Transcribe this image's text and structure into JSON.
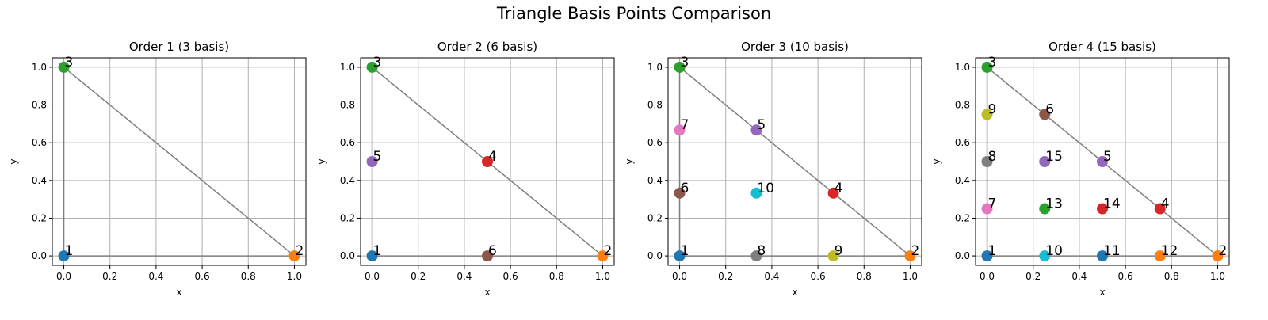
{
  "figure": {
    "title": "Triangle Basis Points Comparison"
  },
  "colors": [
    "#1f77b4",
    "#ff7f0e",
    "#2ca02c",
    "#d62728",
    "#9467bd",
    "#8c564b",
    "#e377c2",
    "#7f7f7f",
    "#bcbd22",
    "#17becf"
  ],
  "chart_data": [
    {
      "type": "scatter",
      "title": "Order 1 (3 basis)",
      "xlabel": "x",
      "ylabel": "y",
      "xlim": [
        -0.05,
        1.05
      ],
      "ylim": [
        -0.05,
        1.05
      ],
      "xticks": [
        0.0,
        0.2,
        0.4,
        0.6,
        0.8,
        1.0
      ],
      "yticks": [
        0.0,
        0.2,
        0.4,
        0.6,
        0.8,
        1.0
      ],
      "tick_labels": [
        "0.0",
        "0.2",
        "0.4",
        "0.6",
        "0.8",
        "1.0"
      ],
      "grid": true,
      "triangle": [
        [
          0,
          0
        ],
        [
          1,
          0
        ],
        [
          0,
          1
        ]
      ],
      "points": [
        {
          "label": "1",
          "x": 0,
          "y": 0
        },
        {
          "label": "2",
          "x": 1,
          "y": 0
        },
        {
          "label": "3",
          "x": 0,
          "y": 1
        }
      ]
    },
    {
      "type": "scatter",
      "title": "Order 2 (6 basis)",
      "xlabel": "x",
      "ylabel": "y",
      "xlim": [
        -0.05,
        1.05
      ],
      "ylim": [
        -0.05,
        1.05
      ],
      "xticks": [
        0.0,
        0.2,
        0.4,
        0.6,
        0.8,
        1.0
      ],
      "yticks": [
        0.0,
        0.2,
        0.4,
        0.6,
        0.8,
        1.0
      ],
      "tick_labels": [
        "0.0",
        "0.2",
        "0.4",
        "0.6",
        "0.8",
        "1.0"
      ],
      "grid": true,
      "triangle": [
        [
          0,
          0
        ],
        [
          1,
          0
        ],
        [
          0,
          1
        ]
      ],
      "points": [
        {
          "label": "1",
          "x": 0,
          "y": 0
        },
        {
          "label": "2",
          "x": 1,
          "y": 0
        },
        {
          "label": "3",
          "x": 0,
          "y": 1
        },
        {
          "label": "4",
          "x": 0.5,
          "y": 0.5
        },
        {
          "label": "5",
          "x": 0,
          "y": 0.5
        },
        {
          "label": "6",
          "x": 0.5,
          "y": 0
        }
      ]
    },
    {
      "type": "scatter",
      "title": "Order 3 (10 basis)",
      "xlabel": "x",
      "ylabel": "y",
      "xlim": [
        -0.05,
        1.05
      ],
      "ylim": [
        -0.05,
        1.05
      ],
      "xticks": [
        0.0,
        0.2,
        0.4,
        0.6,
        0.8,
        1.0
      ],
      "yticks": [
        0.0,
        0.2,
        0.4,
        0.6,
        0.8,
        1.0
      ],
      "tick_labels": [
        "0.0",
        "0.2",
        "0.4",
        "0.6",
        "0.8",
        "1.0"
      ],
      "grid": true,
      "triangle": [
        [
          0,
          0
        ],
        [
          1,
          0
        ],
        [
          0,
          1
        ]
      ],
      "points": [
        {
          "label": "1",
          "x": 0,
          "y": 0
        },
        {
          "label": "2",
          "x": 1,
          "y": 0
        },
        {
          "label": "3",
          "x": 0,
          "y": 1
        },
        {
          "label": "4",
          "x": 0.667,
          "y": 0.333
        },
        {
          "label": "5",
          "x": 0.333,
          "y": 0.667
        },
        {
          "label": "6",
          "x": 0,
          "y": 0.333
        },
        {
          "label": "7",
          "x": 0,
          "y": 0.667
        },
        {
          "label": "8",
          "x": 0.333,
          "y": 0
        },
        {
          "label": "9",
          "x": 0.667,
          "y": 0
        },
        {
          "label": "10",
          "x": 0.333,
          "y": 0.333
        }
      ]
    },
    {
      "type": "scatter",
      "title": "Order 4 (15 basis)",
      "xlabel": "x",
      "ylabel": "y",
      "xlim": [
        -0.05,
        1.05
      ],
      "ylim": [
        -0.05,
        1.05
      ],
      "xticks": [
        0.0,
        0.2,
        0.4,
        0.6,
        0.8,
        1.0
      ],
      "yticks": [
        0.0,
        0.2,
        0.4,
        0.6,
        0.8,
        1.0
      ],
      "tick_labels": [
        "0.0",
        "0.2",
        "0.4",
        "0.6",
        "0.8",
        "1.0"
      ],
      "grid": true,
      "triangle": [
        [
          0,
          0
        ],
        [
          1,
          0
        ],
        [
          0,
          1
        ]
      ],
      "points": [
        {
          "label": "1",
          "x": 0,
          "y": 0
        },
        {
          "label": "2",
          "x": 1,
          "y": 0
        },
        {
          "label": "3",
          "x": 0,
          "y": 1
        },
        {
          "label": "4",
          "x": 0.75,
          "y": 0.25
        },
        {
          "label": "5",
          "x": 0.5,
          "y": 0.5
        },
        {
          "label": "6",
          "x": 0.25,
          "y": 0.75
        },
        {
          "label": "7",
          "x": 0,
          "y": 0.25
        },
        {
          "label": "8",
          "x": 0,
          "y": 0.5
        },
        {
          "label": "9",
          "x": 0,
          "y": 0.75
        },
        {
          "label": "10",
          "x": 0.25,
          "y": 0
        },
        {
          "label": "11",
          "x": 0.5,
          "y": 0
        },
        {
          "label": "12",
          "x": 0.75,
          "y": 0
        },
        {
          "label": "13",
          "x": 0.25,
          "y": 0.25
        },
        {
          "label": "14",
          "x": 0.5,
          "y": 0.25
        },
        {
          "label": "15",
          "x": 0.25,
          "y": 0.5
        }
      ]
    }
  ]
}
